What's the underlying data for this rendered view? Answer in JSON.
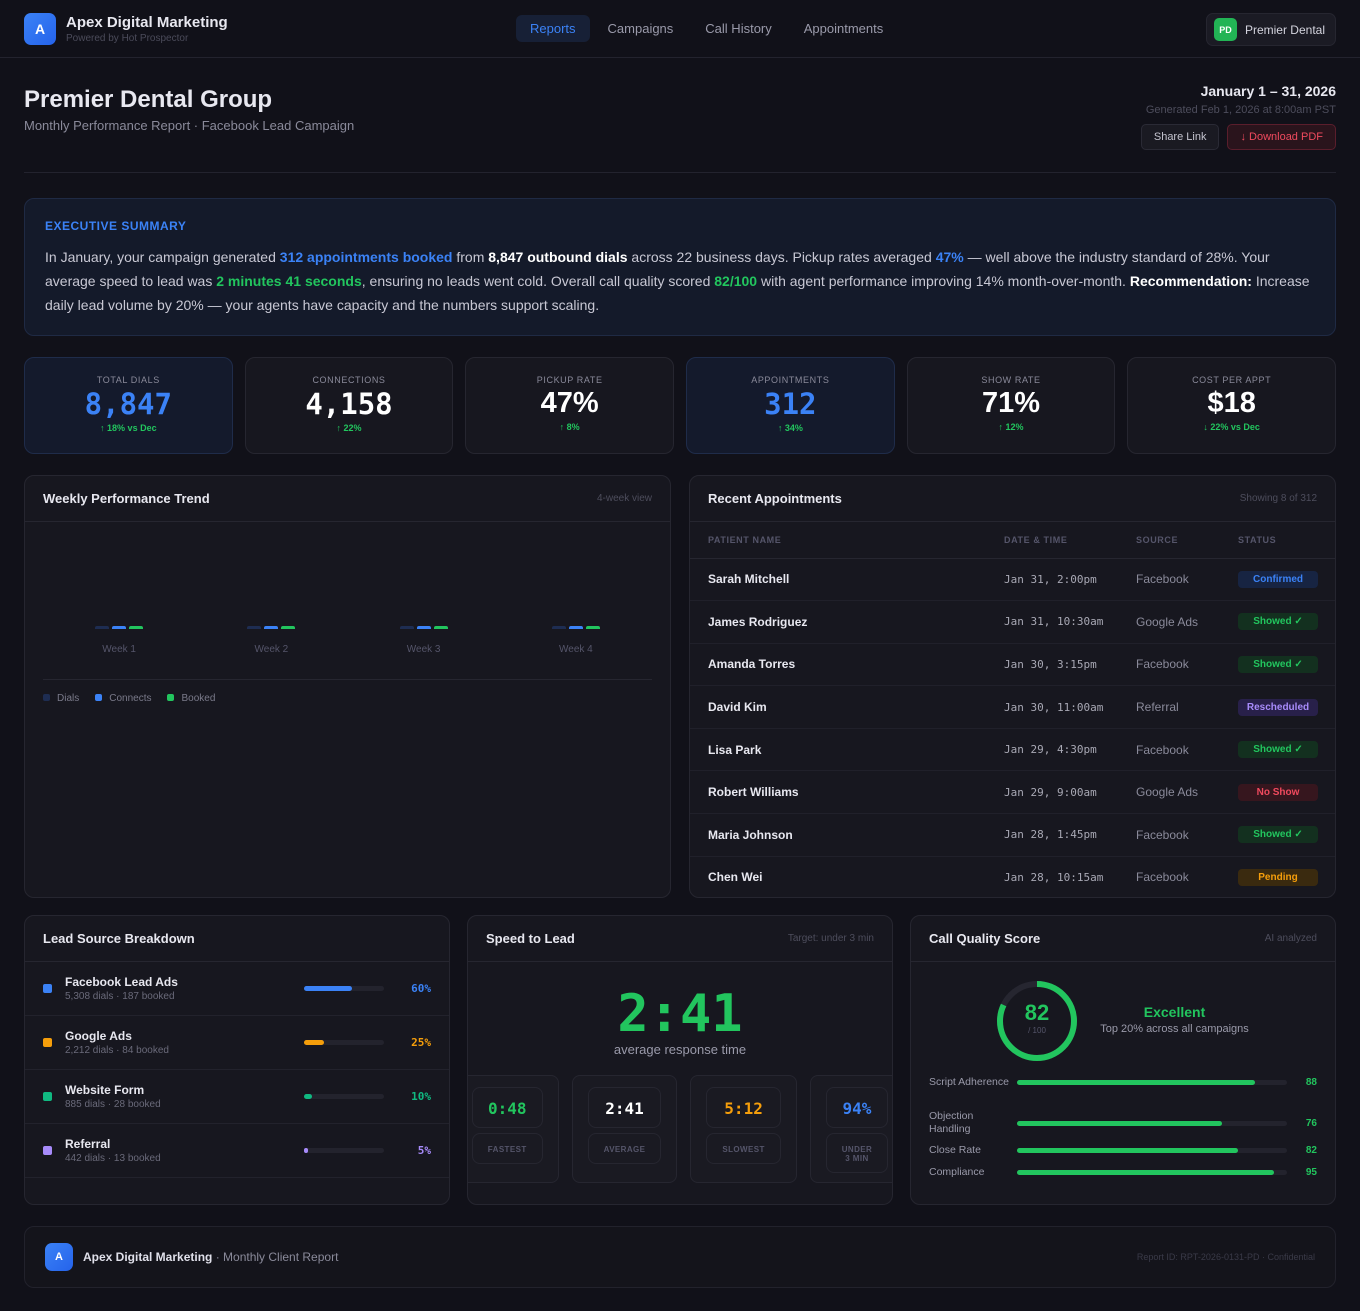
{
  "app": {
    "logo_letter": "A",
    "name": "Apex Digital Marketing",
    "tagline": "Powered by Hot Prospector"
  },
  "nav": [
    {
      "label": "Reports",
      "active": true
    },
    {
      "label": "Campaigns"
    },
    {
      "label": "Call History"
    },
    {
      "label": "Appointments"
    }
  ],
  "client": {
    "initials": "PD",
    "name": "Premier Dental"
  },
  "header": {
    "title": "Premier Dental Group",
    "subtitle": "Monthly Performance Report · Facebook Lead Campaign",
    "date_range": "January 1 – 31, 2026",
    "generated": "Generated Feb 1, 2026 at 8:00am PST",
    "share_label": "Share Link",
    "download_label": "↓ Download PDF"
  },
  "summary": {
    "title": "EXECUTIVE SUMMARY",
    "segments": [
      {
        "t": "In January, your campaign generated ",
        "s": ""
      },
      {
        "t": "312 appointments booked",
        "s": "b"
      },
      {
        "t": " from ",
        "s": ""
      },
      {
        "t": "8,847 outbound dials",
        "s": "w"
      },
      {
        "t": " across 22 business days. Pickup rates averaged ",
        "s": ""
      },
      {
        "t": "47%",
        "s": "b"
      },
      {
        "t": " — well above the industry standard of 28%. Your average speed to lead was ",
        "s": ""
      },
      {
        "t": "2 minutes 41 seconds",
        "s": "gr"
      },
      {
        "t": ", ensuring no leads went cold. Overall call quality scored ",
        "s": ""
      },
      {
        "t": "82/100",
        "s": "gr"
      },
      {
        "t": " with agent performance improving 14% month-over-month. ",
        "s": ""
      },
      {
        "t": "Recommendation:",
        "s": "w"
      },
      {
        "t": " Increase daily lead volume by 20% — your agents have capacity and the numbers support scaling.",
        "s": ""
      }
    ]
  },
  "kpis": [
    {
      "label": "TOTAL DIALS",
      "value": "8,847",
      "change": "↑ 18% vs Dec",
      "color": "#3b82f6",
      "highlight": true,
      "mono": true
    },
    {
      "label": "CONNECTIONS",
      "value": "4,158",
      "change": "↑ 22%",
      "color": "#ffffff",
      "mono": true
    },
    {
      "label": "PICKUP RATE",
      "value": "47%",
      "change": "↑ 8%",
      "color": "#ffffff"
    },
    {
      "label": "APPOINTMENTS",
      "value": "312",
      "change": "↑ 34%",
      "color": "#3b82f6",
      "highlight": true,
      "mono": true
    },
    {
      "label": "SHOW RATE",
      "value": "71%",
      "change": "↑ 12%",
      "color": "#ffffff"
    },
    {
      "label": "COST PER APPT",
      "value": "$18",
      "change": "↓ 22% vs Dec",
      "color": "#ffffff"
    }
  ],
  "trend": {
    "title": "Weekly Performance Trend",
    "meta": "4-week view"
  },
  "chart_data": {
    "type": "bar",
    "categories": [
      "Week 1",
      "Week 2",
      "Week 3",
      "Week 4"
    ],
    "series": [
      {
        "name": "Dials",
        "color": "#1e2d52"
      },
      {
        "name": "Connects",
        "color": "#3b82f6"
      },
      {
        "name": "Booked",
        "color": "#22c55e"
      }
    ],
    "legend": "bottom-left",
    "grid": false
  },
  "appointments": {
    "title": "Recent Appointments",
    "meta": "Showing 8 of 312",
    "columns": [
      "PATIENT NAME",
      "DATE & TIME",
      "SOURCE",
      "STATUS"
    ],
    "rows": [
      [
        "Sarah Mitchell",
        "Jan 31, 2:00pm",
        "Facebook",
        "Confirmed"
      ],
      [
        "James Rodriguez",
        "Jan 31, 10:30am",
        "Google Ads",
        "Showed ✓"
      ],
      [
        "Amanda Torres",
        "Jan 30, 3:15pm",
        "Facebook",
        "Showed ✓"
      ],
      [
        "David Kim",
        "Jan 30, 11:00am",
        "Referral",
        "Rescheduled"
      ],
      [
        "Lisa Park",
        "Jan 29, 4:30pm",
        "Facebook",
        "Showed ✓"
      ],
      [
        "Robert Williams",
        "Jan 29, 9:00am",
        "Google Ads",
        "No Show"
      ],
      [
        "Maria Johnson",
        "Jan 28, 1:45pm",
        "Facebook",
        "Showed ✓"
      ],
      [
        "Chen Wei",
        "Jan 28, 10:15am",
        "Facebook",
        "Pending"
      ]
    ]
  },
  "status_colors": {
    "Confirmed": [
      "#3b82f6",
      "#172442"
    ],
    "Showed ✓": [
      "#22c55e",
      "#13301f"
    ],
    "Rescheduled": [
      "#a78bfa",
      "#28204a"
    ],
    "No Show": [
      "#f04a5e",
      "#36161e"
    ],
    "Pending": [
      "#f59e0b",
      "#3a2a0f"
    ]
  },
  "lead_sources": {
    "title": "Lead Source Breakdown",
    "items": [
      {
        "name": "Facebook Lead Ads",
        "stats": "5,308 dials · 187 booked",
        "percent": 60,
        "label": "60%",
        "color": "#3b82f6"
      },
      {
        "name": "Google Ads",
        "stats": "2,212 dials · 84 booked",
        "percent": 25,
        "label": "25%",
        "color": "#f59e0b"
      },
      {
        "name": "Website Form",
        "stats": "885 dials · 28 booked",
        "percent": 10,
        "label": "10%",
        "color": "#10b981"
      },
      {
        "name": "Referral",
        "stats": "442 dials · 13 booked",
        "percent": 5,
        "label": "5%",
        "color": "#a78bfa"
      }
    ]
  },
  "speed": {
    "title": "Speed to Lead",
    "meta": "Target: under 3 min",
    "value": "2:41",
    "caption": "average response time",
    "stats": [
      {
        "value": "0:48",
        "label": "FASTEST",
        "color": "#22c55e"
      },
      {
        "value": "2:41",
        "label": "AVERAGE",
        "color": "#ffffff"
      },
      {
        "value": "5:12",
        "label": "SLOWEST",
        "color": "#f59e0b"
      },
      {
        "value": "94%",
        "label": "UNDER 3 MIN",
        "color": "#3b82f6"
      }
    ]
  },
  "quality": {
    "title": "Call Quality Score",
    "meta": "AI analyzed",
    "score": 82,
    "score_label": "82",
    "out_of": "/ 100",
    "rating": "Excellent",
    "rating_sub": "Top 20% across all campaigns",
    "metrics": [
      {
        "label": "Script Adherence",
        "value": 88,
        "text": "88"
      },
      {
        "label": "Objection Handling",
        "value": 76,
        "text": "76"
      },
      {
        "label": "Close Rate",
        "value": 82,
        "text": "82"
      },
      {
        "label": "Compliance",
        "value": 95,
        "text": "95"
      }
    ]
  },
  "footer": {
    "logo_letter": "A",
    "brand": "Apex Digital Marketing",
    "suffix": " · Monthly Client Report",
    "report_id": "Report ID: RPT-2026-0131-PD · Confidential"
  }
}
